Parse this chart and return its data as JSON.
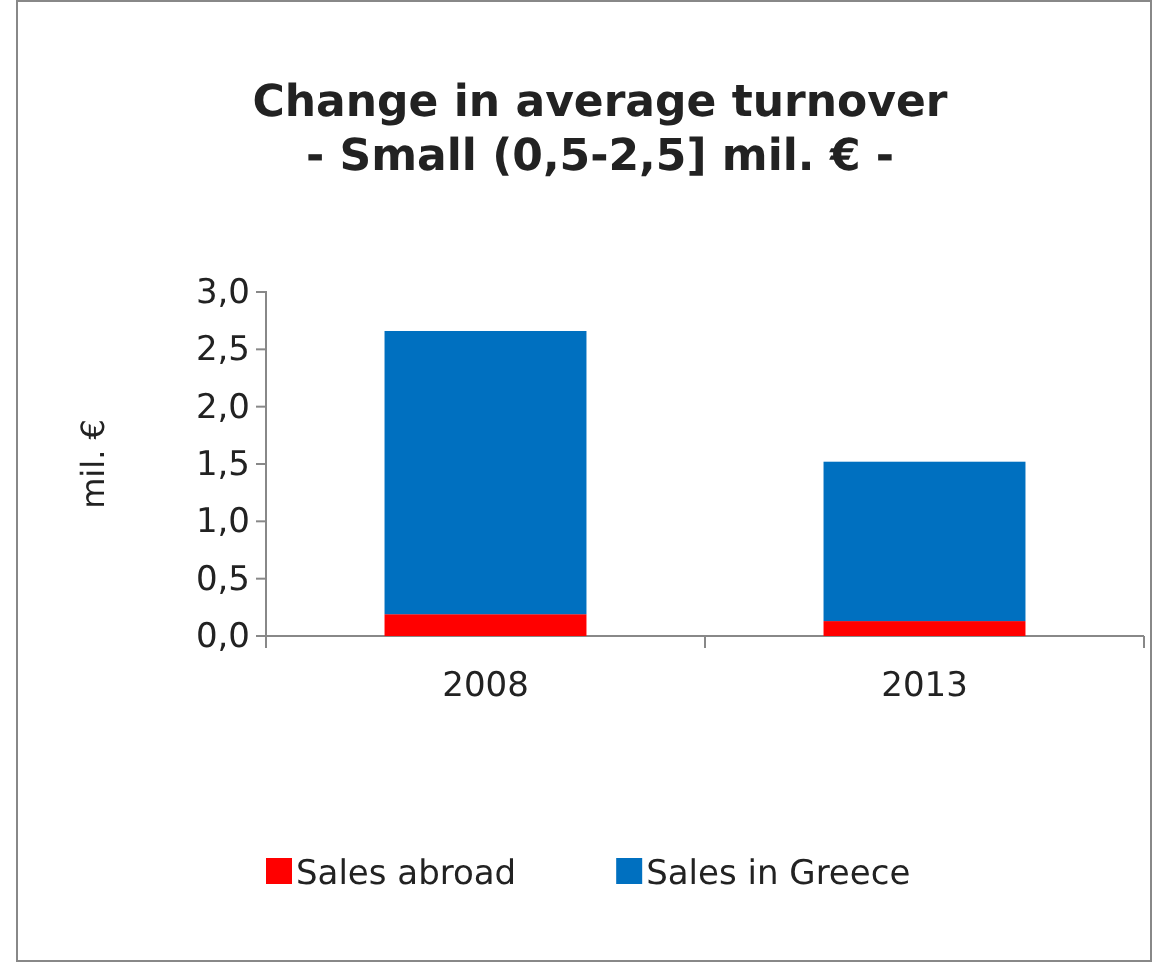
{
  "chart_data": {
    "type": "bar",
    "title": "Change in average turnover\n- Small (0,5-2,5] mil. € -",
    "ylabel": "mil. €",
    "categories": [
      "2008",
      "2013"
    ],
    "stacked": true,
    "legend": "bottom",
    "grid": false,
    "ylim": [
      0,
      3
    ],
    "yticks": [
      {
        "value": 0,
        "label": "0,0"
      },
      {
        "value": 0.5,
        "label": "0,5"
      },
      {
        "value": 1,
        "label": "1,0"
      },
      {
        "value": 1.5,
        "label": "1,5"
      },
      {
        "value": 2,
        "label": "2,0"
      },
      {
        "value": 2.5,
        "label": "2,5"
      },
      {
        "value": 3,
        "label": "3,0"
      }
    ],
    "series": [
      {
        "name": "Sales abroad",
        "color": "#ff0000",
        "values": [
          0.19,
          0.13
        ]
      },
      {
        "name": "Sales in Greece",
        "color": "#0070c0",
        "values": [
          2.47,
          1.39
        ]
      }
    ]
  }
}
